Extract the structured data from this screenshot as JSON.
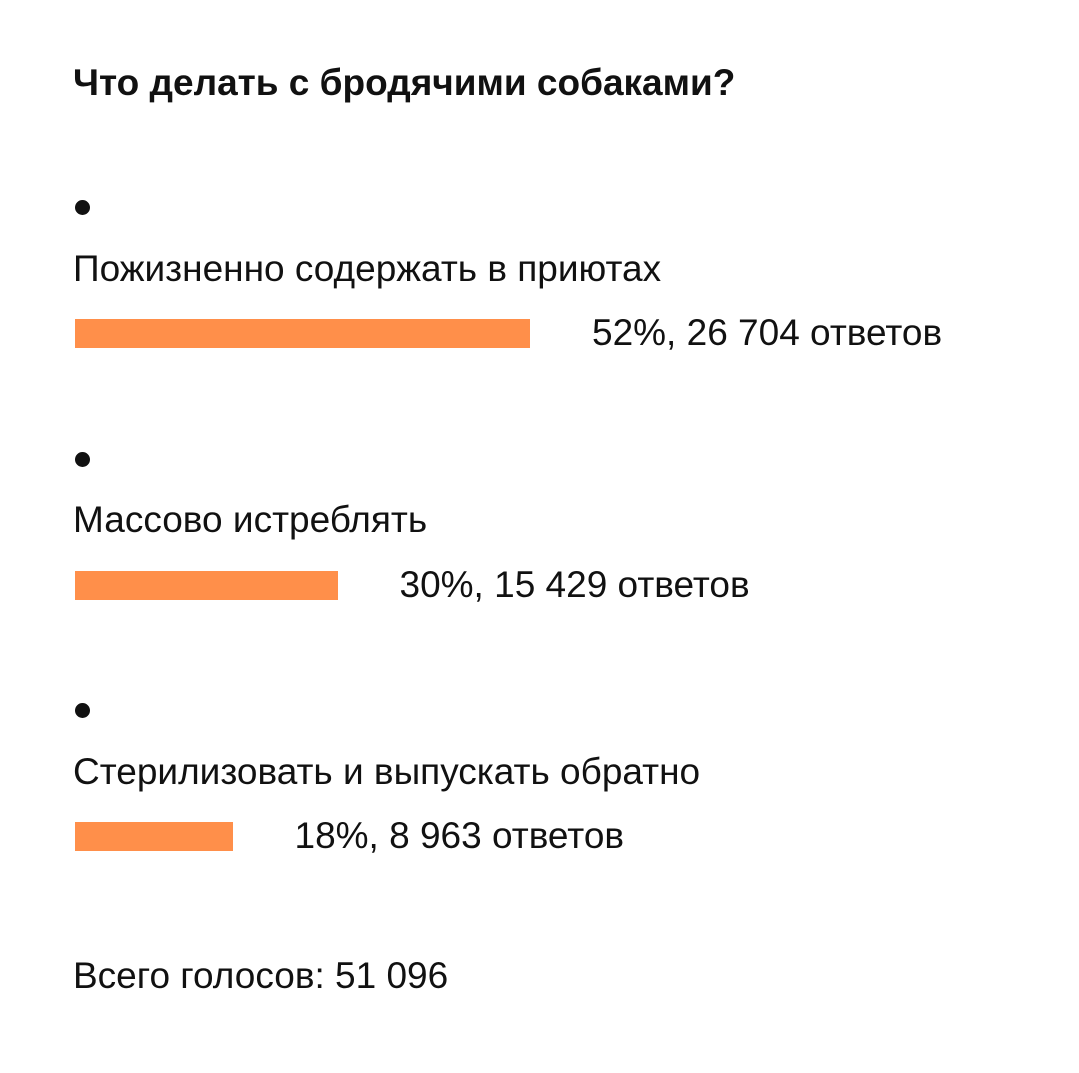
{
  "poll": {
    "title": "Что делать с бродячими собаками?",
    "total_label": "Всего голосов: 51 096",
    "bar_color": "#FF8F4A"
  },
  "chart_data": {
    "type": "bar",
    "orientation": "horizontal",
    "title": "Что делать с бродячими собаками?",
    "categories": [
      "Пожизненно содержать в приютах",
      "Массово истреблять",
      "Стерилизовать и выпускать обратно"
    ],
    "values": [
      52,
      30,
      18
    ],
    "counts": [
      26704,
      15429,
      8963
    ],
    "value_labels": [
      "52%, 26 704 ответов",
      "30%, 15 429 ответов",
      "18%, 8 963 ответов"
    ],
    "total": 51096,
    "grid": false
  }
}
